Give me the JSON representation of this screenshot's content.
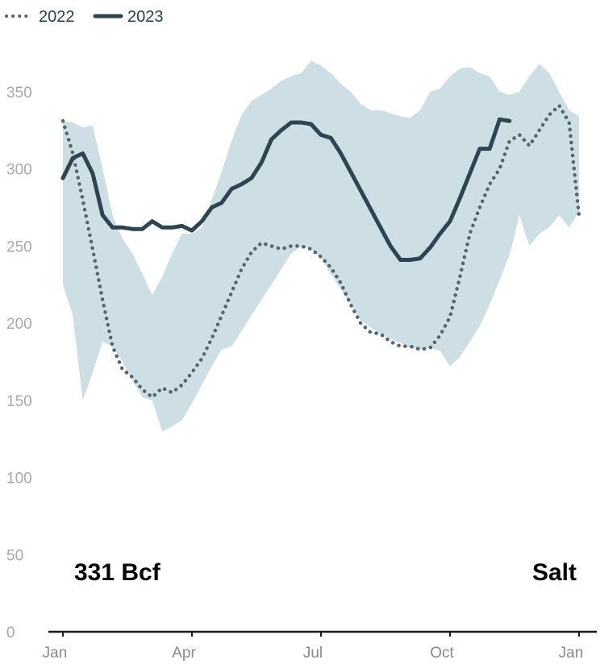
{
  "colors": {
    "band": "#cddfe5",
    "series_2023": "#2f4452",
    "series_2022": "#55656f",
    "axis": "#1a1a1a",
    "ticks": "#aaaaaa"
  },
  "chart_data": {
    "type": "line",
    "title": "",
    "xlabel": "",
    "ylabel": "",
    "ylim": [
      0,
      370
    ],
    "y_ticks": [
      "0",
      "50",
      "100",
      "150",
      "200",
      "250",
      "300",
      "350"
    ],
    "x_range": [
      1,
      53
    ],
    "x_unit": "week of year",
    "x_ticks": [
      {
        "week": 1,
        "label": "Jan"
      },
      {
        "week": 14,
        "label": "Apr"
      },
      {
        "week": 27,
        "label": "Jul"
      },
      {
        "week": 40,
        "label": "Oct"
      },
      {
        "week": 53,
        "label": "Jan"
      }
    ],
    "legend": {
      "placement": "top-left",
      "entries": [
        {
          "label": "2022",
          "style": "dotted"
        },
        {
          "label": "2023",
          "style": "solid"
        }
      ]
    },
    "annotations": {
      "left": "331 Bcf",
      "right": "Salt"
    },
    "band": {
      "upper": [
        [
          1,
          331
        ],
        [
          2,
          330
        ],
        [
          3,
          327
        ],
        [
          4,
          328
        ],
        [
          5,
          300
        ],
        [
          6,
          270
        ],
        [
          7,
          255
        ],
        [
          8,
          245
        ],
        [
          9,
          232
        ],
        [
          10,
          218
        ],
        [
          11,
          230
        ],
        [
          12,
          245
        ],
        [
          13,
          258
        ],
        [
          14,
          258
        ],
        [
          15,
          262
        ],
        [
          16,
          280
        ],
        [
          17,
          298
        ],
        [
          18,
          318
        ],
        [
          19,
          335
        ],
        [
          20,
          344
        ],
        [
          21,
          348
        ],
        [
          22,
          352
        ],
        [
          23,
          357
        ],
        [
          24,
          360
        ],
        [
          25,
          362
        ],
        [
          26,
          370
        ],
        [
          27,
          367
        ],
        [
          28,
          362
        ],
        [
          29,
          355
        ],
        [
          30,
          350
        ],
        [
          31,
          342
        ],
        [
          32,
          338
        ],
        [
          33,
          338
        ],
        [
          34,
          336
        ],
        [
          35,
          334
        ],
        [
          36,
          333
        ],
        [
          37,
          338
        ],
        [
          38,
          350
        ],
        [
          39,
          352
        ],
        [
          40,
          360
        ],
        [
          41,
          365
        ],
        [
          42,
          366
        ],
        [
          43,
          362
        ],
        [
          44,
          360
        ],
        [
          45,
          350
        ],
        [
          46,
          348
        ],
        [
          47,
          350
        ],
        [
          48,
          360
        ],
        [
          49,
          368
        ],
        [
          50,
          362
        ],
        [
          51,
          350
        ],
        [
          52,
          338
        ],
        [
          53,
          334
        ]
      ],
      "lower": [
        [
          1,
          225
        ],
        [
          2,
          205
        ],
        [
          3,
          150
        ],
        [
          4,
          168
        ],
        [
          5,
          188
        ],
        [
          6,
          185
        ],
        [
          7,
          175
        ],
        [
          8,
          163
        ],
        [
          9,
          152
        ],
        [
          10,
          150
        ],
        [
          11,
          130
        ],
        [
          12,
          133
        ],
        [
          13,
          137
        ],
        [
          14,
          148
        ],
        [
          15,
          160
        ],
        [
          16,
          172
        ],
        [
          17,
          183
        ],
        [
          18,
          185
        ],
        [
          19,
          195
        ],
        [
          20,
          205
        ],
        [
          21,
          215
        ],
        [
          22,
          225
        ],
        [
          23,
          235
        ],
        [
          24,
          245
        ],
        [
          25,
          250
        ],
        [
          26,
          248
        ],
        [
          27,
          242
        ],
        [
          28,
          232
        ],
        [
          29,
          222
        ],
        [
          30,
          212
        ],
        [
          31,
          202
        ],
        [
          32,
          197
        ],
        [
          33,
          193
        ],
        [
          34,
          190
        ],
        [
          35,
          187
        ],
        [
          36,
          184
        ],
        [
          37,
          183
        ],
        [
          38,
          184
        ],
        [
          39,
          182
        ],
        [
          40,
          172
        ],
        [
          41,
          178
        ],
        [
          42,
          188
        ],
        [
          43,
          198
        ],
        [
          44,
          212
        ],
        [
          45,
          228
        ],
        [
          46,
          244
        ],
        [
          47,
          270
        ],
        [
          48,
          250
        ],
        [
          49,
          258
        ],
        [
          50,
          262
        ],
        [
          51,
          270
        ],
        [
          52,
          262
        ],
        [
          53,
          272
        ]
      ]
    },
    "series": [
      {
        "name": "2023",
        "style": "solid",
        "points": [
          [
            1,
            294
          ],
          [
            2,
            307
          ],
          [
            3,
            310
          ],
          [
            4,
            297
          ],
          [
            5,
            270
          ],
          [
            6,
            262
          ],
          [
            7,
            262
          ],
          [
            8,
            261
          ],
          [
            9,
            261
          ],
          [
            10,
            266
          ],
          [
            11,
            262
          ],
          [
            12,
            262
          ],
          [
            13,
            263
          ],
          [
            14,
            260
          ],
          [
            15,
            266
          ],
          [
            16,
            275
          ],
          [
            17,
            278
          ],
          [
            18,
            287
          ],
          [
            19,
            290
          ],
          [
            20,
            294
          ],
          [
            21,
            304
          ],
          [
            22,
            319
          ],
          [
            23,
            325
          ],
          [
            24,
            330
          ],
          [
            25,
            330
          ],
          [
            26,
            329
          ],
          [
            27,
            322
          ],
          [
            28,
            320
          ],
          [
            29,
            310
          ],
          [
            30,
            298
          ],
          [
            31,
            286
          ],
          [
            32,
            274
          ],
          [
            33,
            262
          ],
          [
            34,
            250
          ],
          [
            35,
            241
          ],
          [
            36,
            241
          ],
          [
            37,
            242
          ],
          [
            38,
            249
          ],
          [
            39,
            258
          ],
          [
            40,
            266
          ],
          [
            41,
            281
          ],
          [
            42,
            297
          ],
          [
            43,
            313
          ],
          [
            44,
            313
          ],
          [
            45,
            332
          ],
          [
            46,
            331
          ]
        ]
      },
      {
        "name": "2022",
        "style": "dotted",
        "points": [
          [
            1,
            331
          ],
          [
            2,
            310
          ],
          [
            3,
            280
          ],
          [
            4,
            248
          ],
          [
            5,
            215
          ],
          [
            6,
            185
          ],
          [
            7,
            170
          ],
          [
            8,
            165
          ],
          [
            9,
            157
          ],
          [
            10,
            152
          ],
          [
            11,
            158
          ],
          [
            12,
            155
          ],
          [
            13,
            160
          ],
          [
            14,
            168
          ],
          [
            15,
            177
          ],
          [
            16,
            190
          ],
          [
            17,
            205
          ],
          [
            18,
            220
          ],
          [
            19,
            235
          ],
          [
            20,
            246
          ],
          [
            21,
            252
          ],
          [
            22,
            250
          ],
          [
            23,
            248
          ],
          [
            24,
            250
          ],
          [
            25,
            250
          ],
          [
            26,
            248
          ],
          [
            27,
            243
          ],
          [
            28,
            236
          ],
          [
            29,
            226
          ],
          [
            30,
            212
          ],
          [
            31,
            200
          ],
          [
            32,
            194
          ],
          [
            33,
            193
          ],
          [
            34,
            188
          ],
          [
            35,
            185
          ],
          [
            36,
            185
          ],
          [
            37,
            183
          ],
          [
            38,
            184
          ],
          [
            39,
            192
          ],
          [
            40,
            204
          ],
          [
            41,
            230
          ],
          [
            42,
            258
          ],
          [
            43,
            275
          ],
          [
            44,
            290
          ],
          [
            45,
            300
          ],
          [
            46,
            318
          ],
          [
            47,
            322
          ],
          [
            48,
            315
          ],
          [
            49,
            325
          ],
          [
            50,
            335
          ],
          [
            51,
            341
          ],
          [
            52,
            330
          ],
          [
            53,
            270
          ]
        ]
      }
    ]
  }
}
